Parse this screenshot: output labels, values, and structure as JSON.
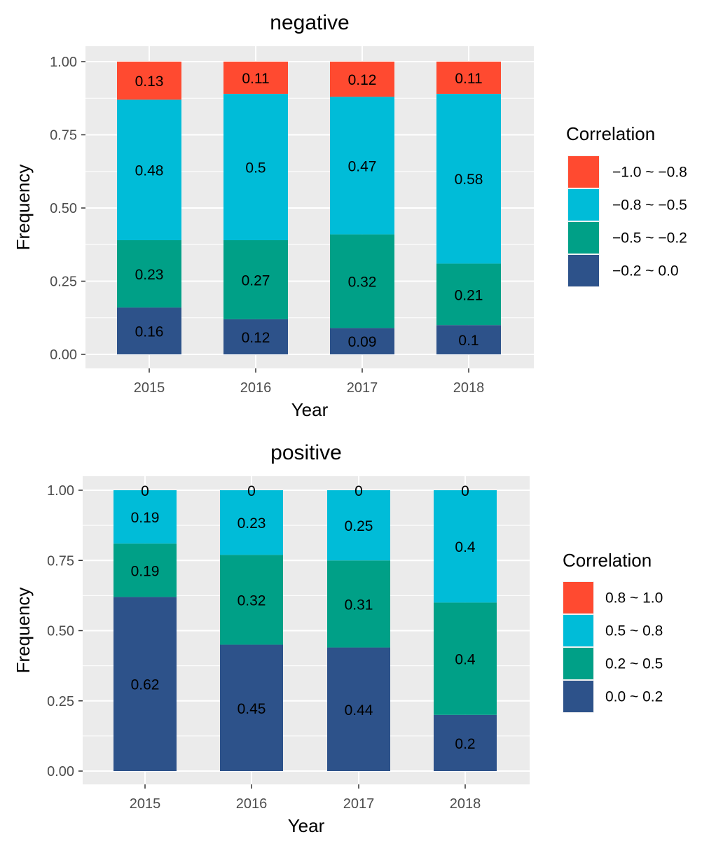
{
  "chart_data": [
    {
      "type": "bar",
      "stacked": true,
      "title": "negative",
      "xlabel": "Year",
      "ylabel": "Frequency",
      "ylim": [
        0,
        1
      ],
      "yticks": [
        "0.00",
        "0.25",
        "0.50",
        "0.75",
        "1.00"
      ],
      "categories": [
        "2015",
        "2016",
        "2017",
        "2018"
      ],
      "legend_title": "Correlation",
      "legend_position": "right",
      "series": [
        {
          "name": "−1.0 ~ −0.8",
          "color": "#FF4A30",
          "values": [
            0.13,
            0.11,
            0.12,
            0.11
          ],
          "labels": [
            "0.13",
            "0.11",
            "0.12",
            "0.11"
          ]
        },
        {
          "name": "−0.8 ~ −0.5",
          "color": "#00BCD8",
          "values": [
            0.48,
            0.5,
            0.47,
            0.58
          ],
          "labels": [
            "0.48",
            "0.5",
            "0.47",
            "0.58"
          ]
        },
        {
          "name": "−0.5 ~ −0.2",
          "color": "#00A087",
          "values": [
            0.23,
            0.27,
            0.32,
            0.21
          ],
          "labels": [
            "0.23",
            "0.27",
            "0.32",
            "0.21"
          ]
        },
        {
          "name": "−0.2 ~ 0.0",
          "color": "#2D528A",
          "values": [
            0.16,
            0.12,
            0.09,
            0.1
          ],
          "labels": [
            "0.16",
            "0.12",
            "0.09",
            "0.1"
          ]
        }
      ]
    },
    {
      "type": "bar",
      "stacked": true,
      "title": "positive",
      "xlabel": "Year",
      "ylabel": "Frequency",
      "ylim": [
        0,
        1
      ],
      "yticks": [
        "0.00",
        "0.25",
        "0.50",
        "0.75",
        "1.00"
      ],
      "categories": [
        "2015",
        "2016",
        "2017",
        "2018"
      ],
      "legend_title": "Correlation",
      "legend_position": "right",
      "series": [
        {
          "name": "0.8 ~ 1.0",
          "color": "#FF4A30",
          "values": [
            0,
            0,
            0,
            0
          ],
          "labels": [
            "0",
            "0",
            "0",
            "0"
          ]
        },
        {
          "name": "0.5 ~ 0.8",
          "color": "#00BCD8",
          "values": [
            0.19,
            0.23,
            0.25,
            0.4
          ],
          "labels": [
            "0.19",
            "0.23",
            "0.25",
            "0.4"
          ]
        },
        {
          "name": "0.2 ~ 0.5",
          "color": "#00A087",
          "values": [
            0.19,
            0.32,
            0.31,
            0.4
          ],
          "labels": [
            "0.19",
            "0.32",
            "0.31",
            "0.4"
          ]
        },
        {
          "name": "0.0 ~ 0.2",
          "color": "#2D528A",
          "values": [
            0.62,
            0.45,
            0.44,
            0.2
          ],
          "labels": [
            "0.62",
            "0.45",
            "0.44",
            "0.2"
          ]
        }
      ]
    }
  ]
}
